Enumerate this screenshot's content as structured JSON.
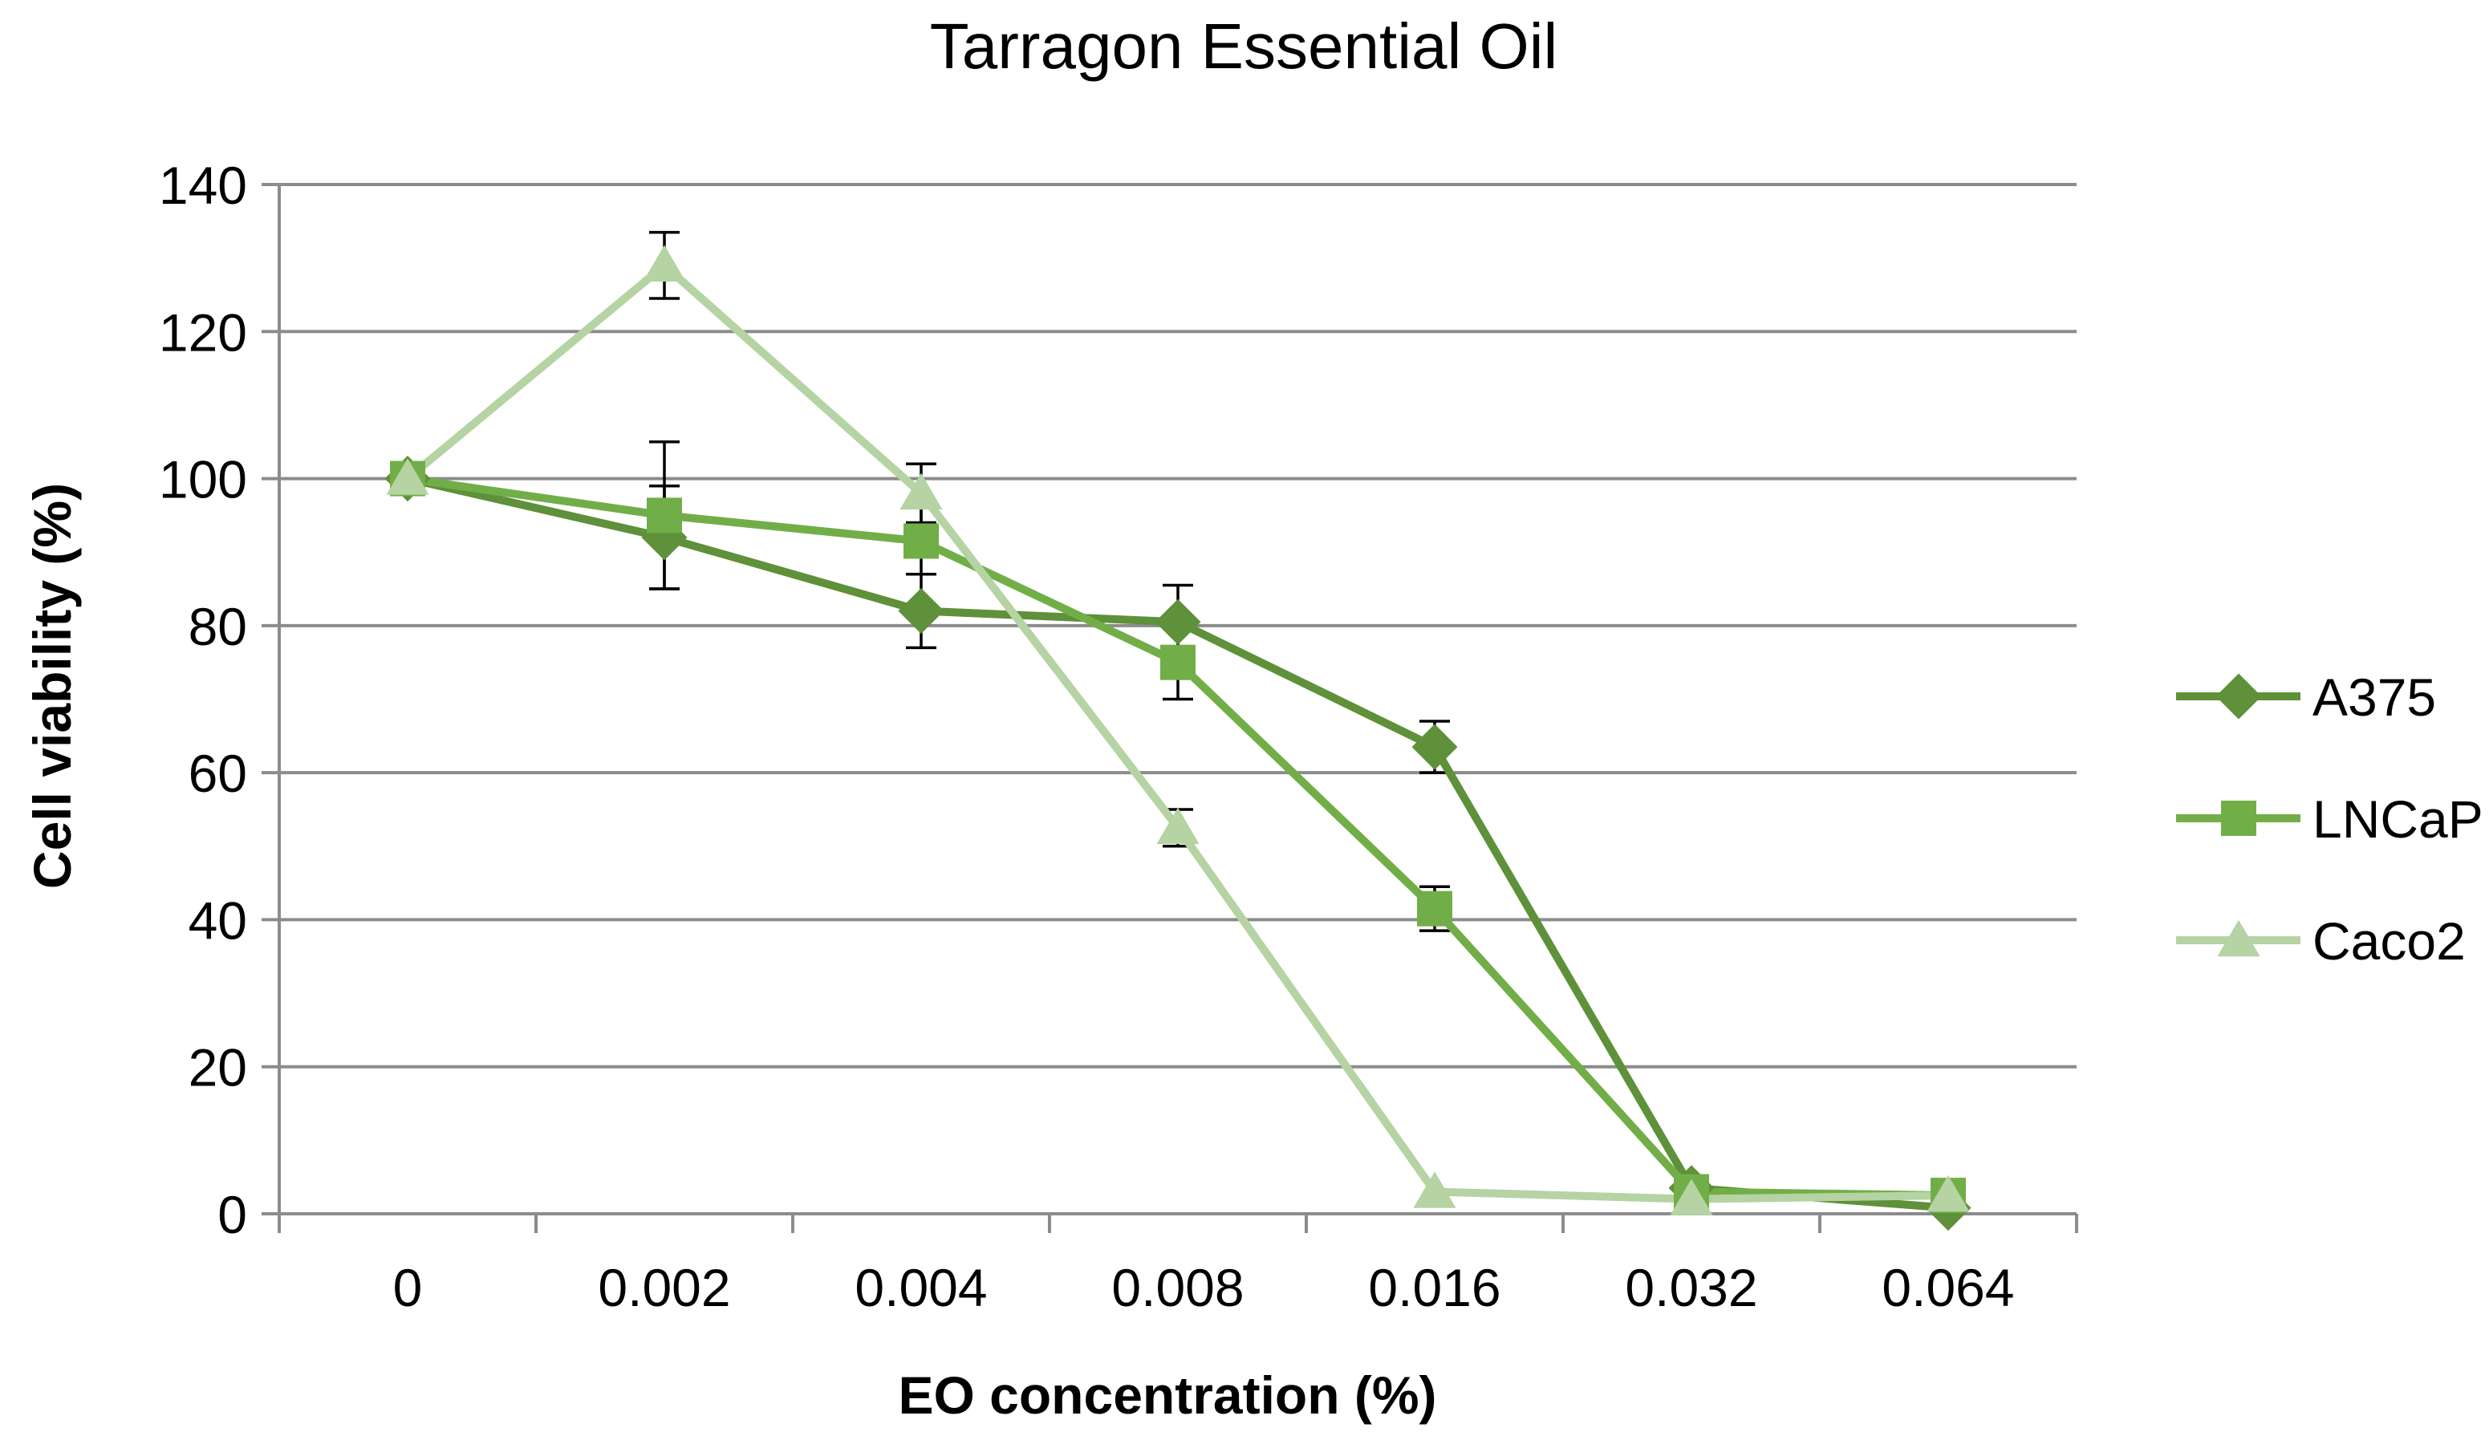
{
  "chart_data": {
    "type": "line",
    "title": "Tarragon Essential Oil",
    "xlabel": "EO concentration (%)",
    "ylabel": "Cell viability (%)",
    "categories": [
      "0",
      "0.002",
      "0.004",
      "0.008",
      "0.016",
      "0.032",
      "0.064"
    ],
    "ylim": [
      0,
      140
    ],
    "yticks": [
      "0",
      "20",
      "40",
      "60",
      "80",
      "100",
      "120",
      "140"
    ],
    "grid": true,
    "legend_position": "right",
    "series": [
      {
        "name": "A375",
        "marker": "diamond",
        "color": "#5e9139",
        "values": [
          100,
          92,
          82,
          80.5,
          63.5,
          3.5,
          0.8
        ],
        "errors": [
          0,
          7,
          5,
          5,
          3.5,
          0,
          0
        ]
      },
      {
        "name": "LNCaP",
        "marker": "square",
        "color": "#72ae48",
        "values": [
          100,
          95,
          91.5,
          75,
          41.5,
          3,
          2.5
        ],
        "errors": [
          0,
          10,
          4.5,
          5,
          3,
          0,
          0
        ]
      },
      {
        "name": "Caco2",
        "marker": "triangle",
        "color": "#b5d3a3",
        "values": [
          100,
          129,
          98,
          52.5,
          3,
          2,
          2.5
        ],
        "errors": [
          0,
          4.5,
          4,
          2.5,
          0,
          0,
          0
        ]
      }
    ]
  }
}
